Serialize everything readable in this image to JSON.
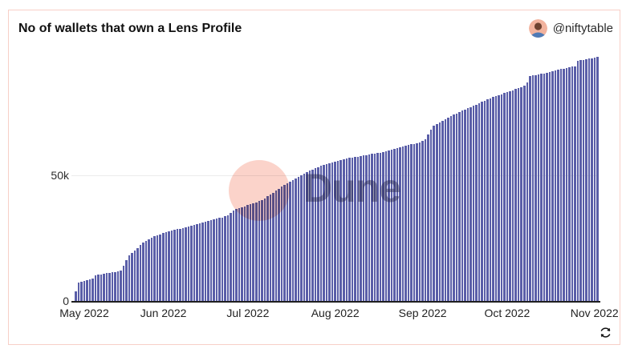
{
  "header": {
    "title": "No of wallets that own a Lens Profile",
    "attribution": {
      "handle": "@niftytable",
      "avatar_icon": "user-avatar-photo",
      "avatar_bg_color": "#f2b39e"
    }
  },
  "watermark": {
    "text": "Dune",
    "circle_color": "#fbd3ca"
  },
  "colors": {
    "bar": "#5a5ea8",
    "card_border": "#f8cfc7",
    "gridline": "#ececec",
    "axis": "#1f1f1f",
    "title_text": "#111111",
    "label_text": "#2d2d2d"
  },
  "chart_data": {
    "type": "bar",
    "title": "No of wallets that own a Lens Profile",
    "xlabel": "",
    "ylabel": "",
    "unit": "wallets (values in thousands)",
    "x_range": "daily, May 2022 through early Nov 2022",
    "ylim_k": [
      0,
      100
    ],
    "grid": "single horizontal line at 50k",
    "legend": "none",
    "y_ticks": [
      {
        "label": "0",
        "value_k": 0
      },
      {
        "label": "50k",
        "value_k": 50
      }
    ],
    "x_tick_labels": [
      "May 2022",
      "Jun 2022",
      "Jul 2022",
      "Aug 2022",
      "Sep 2022",
      "Oct 2022",
      "Nov 2022"
    ],
    "x_tick_day_index": [
      0,
      31,
      61,
      92,
      123,
      153,
      184
    ],
    "values_k": [
      4.0,
      7.6,
      8.0,
      8.3,
      8.6,
      8.9,
      9.4,
      10.4,
      10.8,
      11.0,
      11.2,
      11.4,
      11.6,
      11.7,
      11.9,
      12.1,
      12.4,
      14.5,
      16.5,
      18.5,
      19.5,
      20.3,
      21.5,
      22.5,
      23.5,
      24.3,
      25.0,
      25.6,
      26.1,
      26.5,
      26.9,
      27.3,
      27.7,
      28.0,
      28.3,
      28.6,
      28.9,
      29.1,
      29.4,
      29.7,
      30.0,
      30.3,
      30.6,
      30.9,
      31.2,
      31.5,
      31.8,
      32.1,
      32.4,
      32.7,
      33.0,
      33.3,
      33.6,
      34.0,
      34.4,
      35.5,
      36.3,
      36.8,
      37.2,
      37.6,
      38.0,
      38.4,
      38.8,
      39.2,
      39.6,
      40.0,
      40.6,
      41.2,
      41.9,
      42.6,
      43.4,
      44.2,
      45.0,
      45.8,
      46.5,
      47.2,
      47.9,
      48.5,
      49.1,
      49.7,
      50.3,
      50.9,
      51.5,
      52.1,
      52.6,
      53.1,
      53.6,
      54.0,
      54.4,
      54.8,
      55.2,
      55.5,
      55.8,
      56.1,
      56.4,
      56.7,
      57.0,
      57.2,
      57.4,
      57.6,
      57.8,
      58.0,
      58.2,
      58.4,
      58.6,
      58.8,
      59.0,
      59.2,
      59.4,
      59.6,
      59.9,
      60.2,
      60.5,
      60.8,
      61.1,
      61.4,
      61.7,
      62.0,
      62.3,
      62.6,
      62.9,
      63.2,
      63.5,
      64.0,
      64.6,
      66.5,
      68.5,
      70.0,
      70.8,
      71.4,
      72.0,
      72.6,
      73.2,
      73.8,
      74.4,
      75.0,
      75.5,
      76.0,
      76.5,
      77.0,
      77.5,
      78.0,
      78.5,
      79.0,
      79.5,
      80.0,
      80.5,
      81.0,
      81.4,
      81.8,
      82.2,
      82.6,
      83.0,
      83.4,
      83.8,
      84.2,
      84.6,
      85.0,
      85.3,
      86.0,
      87.3,
      89.8,
      90.1,
      90.3,
      90.5,
      90.7,
      90.9,
      91.2,
      91.5,
      91.8,
      92.1,
      92.4,
      92.6,
      92.8,
      93.0,
      93.2,
      93.5,
      93.8,
      95.8,
      96.1,
      96.3,
      96.5,
      96.7,
      96.9,
      97.1,
      97.4
    ]
  },
  "footer": {
    "refresh_icon": "refresh-cycle-icon"
  }
}
